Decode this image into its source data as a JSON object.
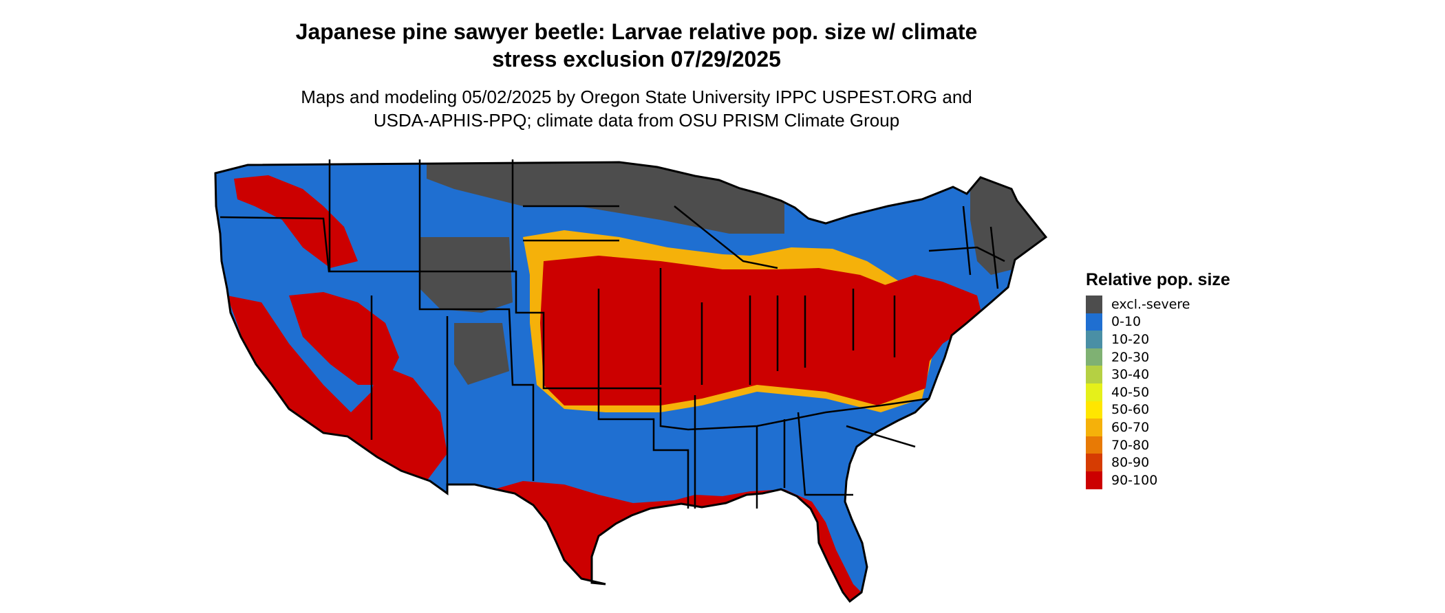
{
  "title": {
    "line1": "Japanese pine sawyer beetle: Larvae relative pop. size w/ climate",
    "line2": "stress exclusion 07/29/2025"
  },
  "subtitle": {
    "line1": "Maps and modeling 05/02/2025 by Oregon State University IPPC USPEST.ORG and",
    "line2": "USDA-APHIS-PPQ; climate data from OSU PRISM Climate Group"
  },
  "legend": {
    "title": "Relative pop. size",
    "items": [
      {
        "label": "excl.-severe",
        "color": "#4d4d4d"
      },
      {
        "label": "0-10",
        "color": "#1f6fd1"
      },
      {
        "label": "10-20",
        "color": "#4a8fa5"
      },
      {
        "label": "20-30",
        "color": "#7fb173"
      },
      {
        "label": "30-40",
        "color": "#b5d043"
      },
      {
        "label": "40-50",
        "color": "#e5f01a"
      },
      {
        "label": "50-60",
        "color": "#ffe600"
      },
      {
        "label": "60-70",
        "color": "#f5b10a"
      },
      {
        "label": "70-80",
        "color": "#e87a05"
      },
      {
        "label": "80-90",
        "color": "#d63c02"
      },
      {
        "label": "90-100",
        "color": "#cc0000"
      }
    ]
  },
  "map": {
    "colors": {
      "excluded": "#4d4d4d",
      "low": "#1f6fd1",
      "mid": "#f5b10a",
      "high": "#cc0000",
      "border": "#000000"
    }
  }
}
